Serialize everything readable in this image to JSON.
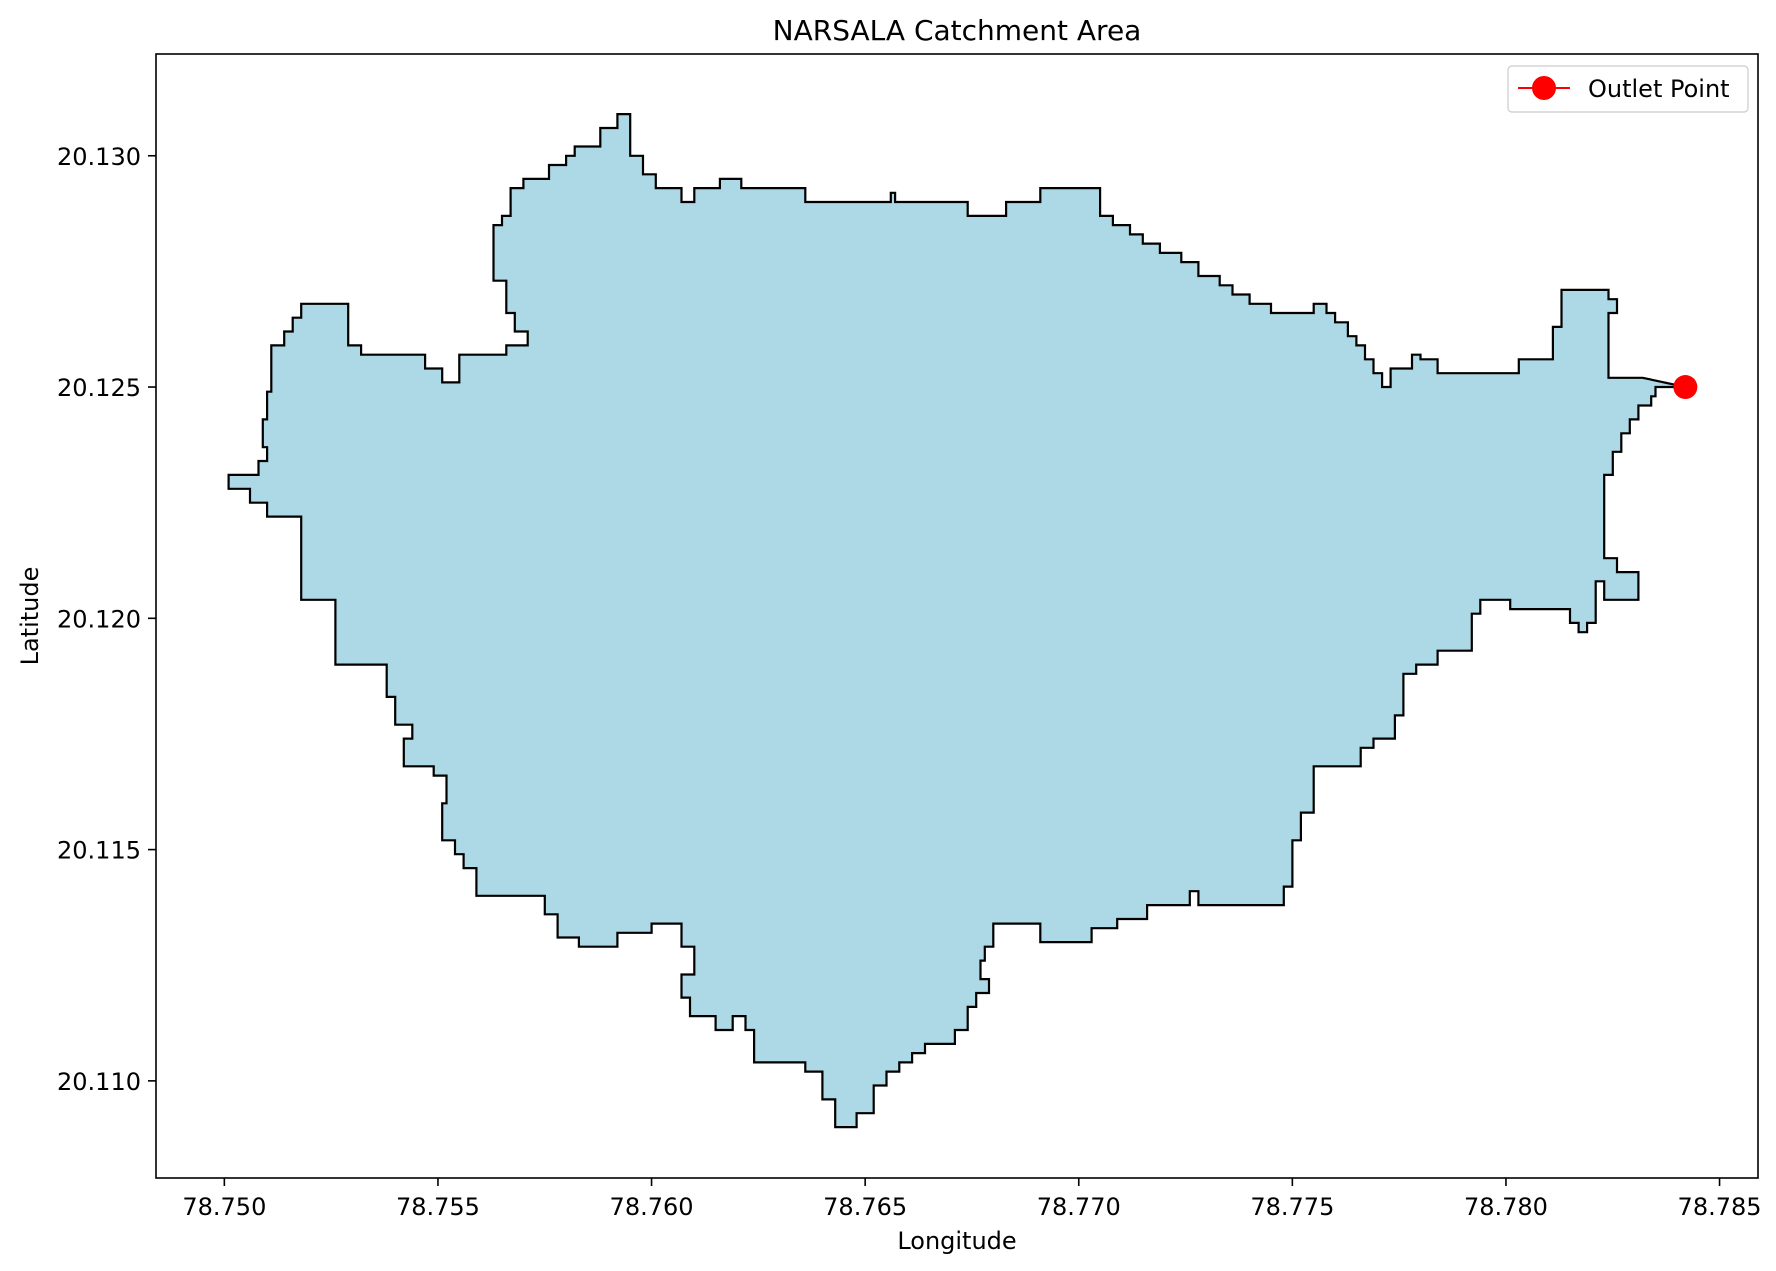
{
  "chart_data": {
    "type": "map",
    "title": "NARSALA Catchment Area",
    "xlabel": "Longitude",
    "ylabel": "Latitude",
    "xlim": [
      78.7484,
      78.7859
    ],
    "ylim": [
      20.1079,
      20.1322
    ],
    "grid": false,
    "legend_position": "top-right",
    "xticks": [
      {
        "value": 78.75,
        "label": "78.750"
      },
      {
        "value": 78.755,
        "label": "78.755"
      },
      {
        "value": 78.76,
        "label": "78.760"
      },
      {
        "value": 78.765,
        "label": "78.765"
      },
      {
        "value": 78.77,
        "label": "78.770"
      },
      {
        "value": 78.775,
        "label": "78.775"
      },
      {
        "value": 78.78,
        "label": "78.780"
      },
      {
        "value": 78.785,
        "label": "78.785"
      }
    ],
    "yticks": [
      {
        "value": 20.11,
        "label": "20.110"
      },
      {
        "value": 20.115,
        "label": "20.115"
      },
      {
        "value": 20.12,
        "label": "20.120"
      },
      {
        "value": 20.125,
        "label": "20.125"
      },
      {
        "value": 20.13,
        "label": "20.130"
      }
    ],
    "catchment": {
      "fill": "#add8e6",
      "stroke": "#000000",
      "boundary": [
        [
          78.7501,
          20.1231
        ],
        [
          78.7501,
          20.1228
        ],
        [
          78.7506,
          20.1228
        ],
        [
          78.7506,
          20.1225
        ],
        [
          78.751,
          20.1225
        ],
        [
          78.751,
          20.1222
        ],
        [
          78.7518,
          20.1222
        ],
        [
          78.7518,
          20.1204
        ],
        [
          78.7526,
          20.1204
        ],
        [
          78.7526,
          20.119
        ],
        [
          78.7538,
          20.119
        ],
        [
          78.7538,
          20.1183
        ],
        [
          78.754,
          20.1183
        ],
        [
          78.754,
          20.1177
        ],
        [
          78.7544,
          20.1177
        ],
        [
          78.7544,
          20.1174
        ],
        [
          78.7542,
          20.1174
        ],
        [
          78.7542,
          20.1168
        ],
        [
          78.7549,
          20.1168
        ],
        [
          78.7549,
          20.1166
        ],
        [
          78.7552,
          20.1166
        ],
        [
          78.7552,
          20.116
        ],
        [
          78.7551,
          20.116
        ],
        [
          78.7551,
          20.1152
        ],
        [
          78.7554,
          20.1152
        ],
        [
          78.7554,
          20.1149
        ],
        [
          78.7556,
          20.1149
        ],
        [
          78.7556,
          20.1146
        ],
        [
          78.7559,
          20.1146
        ],
        [
          78.7559,
          20.114
        ],
        [
          78.7575,
          20.114
        ],
        [
          78.7575,
          20.1136
        ],
        [
          78.7578,
          20.1136
        ],
        [
          78.7578,
          20.1131
        ],
        [
          78.7583,
          20.1131
        ],
        [
          78.7583,
          20.1129
        ],
        [
          78.7592,
          20.1129
        ],
        [
          78.7592,
          20.1132
        ],
        [
          78.76,
          20.1132
        ],
        [
          78.76,
          20.1134
        ],
        [
          78.7607,
          20.1134
        ],
        [
          78.7607,
          20.1129
        ],
        [
          78.761,
          20.1129
        ],
        [
          78.761,
          20.1123
        ],
        [
          78.7607,
          20.1123
        ],
        [
          78.7607,
          20.1118
        ],
        [
          78.7609,
          20.1118
        ],
        [
          78.7609,
          20.1114
        ],
        [
          78.7615,
          20.1114
        ],
        [
          78.7615,
          20.1111
        ],
        [
          78.7619,
          20.1111
        ],
        [
          78.7619,
          20.1114
        ],
        [
          78.7622,
          20.1114
        ],
        [
          78.7622,
          20.1111
        ],
        [
          78.7624,
          20.1111
        ],
        [
          78.7624,
          20.1104
        ],
        [
          78.7636,
          20.1104
        ],
        [
          78.7636,
          20.1102
        ],
        [
          78.764,
          20.1102
        ],
        [
          78.764,
          20.1096
        ],
        [
          78.7643,
          20.1096
        ],
        [
          78.7643,
          20.109
        ],
        [
          78.7648,
          20.109
        ],
        [
          78.7648,
          20.1093
        ],
        [
          78.7652,
          20.1093
        ],
        [
          78.7652,
          20.1099
        ],
        [
          78.7655,
          20.1099
        ],
        [
          78.7655,
          20.1102
        ],
        [
          78.7658,
          20.1102
        ],
        [
          78.7658,
          20.1104
        ],
        [
          78.7661,
          20.1104
        ],
        [
          78.7661,
          20.1106
        ],
        [
          78.7664,
          20.1106
        ],
        [
          78.7664,
          20.1108
        ],
        [
          78.7671,
          20.1108
        ],
        [
          78.7671,
          20.1111
        ],
        [
          78.7674,
          20.1111
        ],
        [
          78.7674,
          20.1116
        ],
        [
          78.7676,
          20.1116
        ],
        [
          78.7676,
          20.1119
        ],
        [
          78.7679,
          20.1119
        ],
        [
          78.7679,
          20.1122
        ],
        [
          78.7677,
          20.1122
        ],
        [
          78.7677,
          20.1126
        ],
        [
          78.7678,
          20.1126
        ],
        [
          78.7678,
          20.1129
        ],
        [
          78.768,
          20.1129
        ],
        [
          78.768,
          20.1134
        ],
        [
          78.7691,
          20.1134
        ],
        [
          78.7691,
          20.113
        ],
        [
          78.7703,
          20.113
        ],
        [
          78.7703,
          20.1133
        ],
        [
          78.7709,
          20.1133
        ],
        [
          78.7709,
          20.1135
        ],
        [
          78.7716,
          20.1135
        ],
        [
          78.7716,
          20.1138
        ],
        [
          78.7726,
          20.1138
        ],
        [
          78.7726,
          20.1141
        ],
        [
          78.7728,
          20.1141
        ],
        [
          78.7728,
          20.1138
        ],
        [
          78.7748,
          20.1138
        ],
        [
          78.7748,
          20.1142
        ],
        [
          78.775,
          20.1142
        ],
        [
          78.775,
          20.1152
        ],
        [
          78.7752,
          20.1152
        ],
        [
          78.7752,
          20.1158
        ],
        [
          78.7755,
          20.1158
        ],
        [
          78.7755,
          20.1168
        ],
        [
          78.7766,
          20.1168
        ],
        [
          78.7766,
          20.1172
        ],
        [
          78.7769,
          20.1172
        ],
        [
          78.7769,
          20.1174
        ],
        [
          78.7774,
          20.1174
        ],
        [
          78.7774,
          20.1179
        ],
        [
          78.7776,
          20.1179
        ],
        [
          78.7776,
          20.1188
        ],
        [
          78.7779,
          20.1188
        ],
        [
          78.7779,
          20.119
        ],
        [
          78.7784,
          20.119
        ],
        [
          78.7784,
          20.1193
        ],
        [
          78.7792,
          20.1193
        ],
        [
          78.7792,
          20.1201
        ],
        [
          78.7794,
          20.1201
        ],
        [
          78.7794,
          20.1204
        ],
        [
          78.7801,
          20.1204
        ],
        [
          78.7801,
          20.1202
        ],
        [
          78.7815,
          20.1202
        ],
        [
          78.7815,
          20.1199
        ],
        [
          78.7817,
          20.1199
        ],
        [
          78.7817,
          20.1197
        ],
        [
          78.7819,
          20.1197
        ],
        [
          78.7819,
          20.1199
        ],
        [
          78.7821,
          20.1199
        ],
        [
          78.7821,
          20.1208
        ],
        [
          78.7823,
          20.1208
        ],
        [
          78.7823,
          20.1204
        ],
        [
          78.7831,
          20.1204
        ],
        [
          78.7831,
          20.121
        ],
        [
          78.7826,
          20.121
        ],
        [
          78.7826,
          20.1213
        ],
        [
          78.7823,
          20.1213
        ],
        [
          78.7823,
          20.1231
        ],
        [
          78.7825,
          20.1231
        ],
        [
          78.7825,
          20.1236
        ],
        [
          78.7827,
          20.1236
        ],
        [
          78.7827,
          20.124
        ],
        [
          78.7829,
          20.124
        ],
        [
          78.7829,
          20.1243
        ],
        [
          78.7831,
          20.1243
        ],
        [
          78.7831,
          20.1246
        ],
        [
          78.7834,
          20.1246
        ],
        [
          78.7834,
          20.1248
        ],
        [
          78.7835,
          20.1248
        ],
        [
          78.7835,
          20.125
        ],
        [
          78.7842,
          20.125
        ],
        [
          78.7832,
          20.1252
        ],
        [
          78.7824,
          20.1252
        ],
        [
          78.7824,
          20.1266
        ],
        [
          78.7826,
          20.1266
        ],
        [
          78.7826,
          20.1269
        ],
        [
          78.7824,
          20.1269
        ],
        [
          78.7824,
          20.1271
        ],
        [
          78.7813,
          20.1271
        ],
        [
          78.7813,
          20.1263
        ],
        [
          78.7811,
          20.1263
        ],
        [
          78.7811,
          20.1256
        ],
        [
          78.7803,
          20.1256
        ],
        [
          78.7803,
          20.1253
        ],
        [
          78.7784,
          20.1253
        ],
        [
          78.7784,
          20.1256
        ],
        [
          78.778,
          20.1256
        ],
        [
          78.778,
          20.1257
        ],
        [
          78.7778,
          20.1257
        ],
        [
          78.7778,
          20.1254
        ],
        [
          78.7773,
          20.1254
        ],
        [
          78.7773,
          20.125
        ],
        [
          78.7771,
          20.125
        ],
        [
          78.7771,
          20.1253
        ],
        [
          78.7769,
          20.1253
        ],
        [
          78.7769,
          20.1256
        ],
        [
          78.7767,
          20.1256
        ],
        [
          78.7767,
          20.1259
        ],
        [
          78.7765,
          20.1259
        ],
        [
          78.7765,
          20.1261
        ],
        [
          78.7763,
          20.1261
        ],
        [
          78.7763,
          20.1264
        ],
        [
          78.776,
          20.1264
        ],
        [
          78.776,
          20.1266
        ],
        [
          78.7758,
          20.1266
        ],
        [
          78.7758,
          20.1268
        ],
        [
          78.7755,
          20.1268
        ],
        [
          78.7755,
          20.1266
        ],
        [
          78.7745,
          20.1266
        ],
        [
          78.7745,
          20.1268
        ],
        [
          78.774,
          20.1268
        ],
        [
          78.774,
          20.127
        ],
        [
          78.7736,
          20.127
        ],
        [
          78.7736,
          20.1272
        ],
        [
          78.7733,
          20.1272
        ],
        [
          78.7733,
          20.1274
        ],
        [
          78.7728,
          20.1274
        ],
        [
          78.7728,
          20.1277
        ],
        [
          78.7724,
          20.1277
        ],
        [
          78.7724,
          20.1279
        ],
        [
          78.7719,
          20.1279
        ],
        [
          78.7719,
          20.1281
        ],
        [
          78.7715,
          20.1281
        ],
        [
          78.7715,
          20.1283
        ],
        [
          78.7712,
          20.1283
        ],
        [
          78.7712,
          20.1285
        ],
        [
          78.7708,
          20.1285
        ],
        [
          78.7708,
          20.1287
        ],
        [
          78.7705,
          20.1287
        ],
        [
          78.7705,
          20.1293
        ],
        [
          78.7691,
          20.1293
        ],
        [
          78.7691,
          20.129
        ],
        [
          78.7683,
          20.129
        ],
        [
          78.7683,
          20.1287
        ],
        [
          78.7674,
          20.1287
        ],
        [
          78.7674,
          20.129
        ],
        [
          78.7657,
          20.129
        ],
        [
          78.7657,
          20.1292
        ],
        [
          78.7656,
          20.1292
        ],
        [
          78.7656,
          20.129
        ],
        [
          78.7636,
          20.129
        ],
        [
          78.7636,
          20.1293
        ],
        [
          78.7621,
          20.1293
        ],
        [
          78.7621,
          20.1295
        ],
        [
          78.7616,
          20.1295
        ],
        [
          78.7616,
          20.1293
        ],
        [
          78.761,
          20.1293
        ],
        [
          78.761,
          20.129
        ],
        [
          78.7607,
          20.129
        ],
        [
          78.7607,
          20.1293
        ],
        [
          78.7601,
          20.1293
        ],
        [
          78.7601,
          20.1296
        ],
        [
          78.7598,
          20.1296
        ],
        [
          78.7598,
          20.13
        ],
        [
          78.7595,
          20.13
        ],
        [
          78.7595,
          20.1309
        ],
        [
          78.7592,
          20.1309
        ],
        [
          78.7592,
          20.1306
        ],
        [
          78.7588,
          20.1306
        ],
        [
          78.7588,
          20.1302
        ],
        [
          78.7582,
          20.1302
        ],
        [
          78.7582,
          20.13
        ],
        [
          78.758,
          20.13
        ],
        [
          78.758,
          20.1298
        ],
        [
          78.7576,
          20.1298
        ],
        [
          78.7576,
          20.1295
        ],
        [
          78.757,
          20.1295
        ],
        [
          78.757,
          20.1293
        ],
        [
          78.7567,
          20.1293
        ],
        [
          78.7567,
          20.1287
        ],
        [
          78.7565,
          20.1287
        ],
        [
          78.7565,
          20.1285
        ],
        [
          78.7563,
          20.1285
        ],
        [
          78.7563,
          20.1273
        ],
        [
          78.7566,
          20.1273
        ],
        [
          78.7566,
          20.1266
        ],
        [
          78.7568,
          20.1266
        ],
        [
          78.7568,
          20.1262
        ],
        [
          78.7571,
          20.1262
        ],
        [
          78.7571,
          20.1259
        ],
        [
          78.7566,
          20.1259
        ],
        [
          78.7566,
          20.1257
        ],
        [
          78.7555,
          20.1257
        ],
        [
          78.7555,
          20.1251
        ],
        [
          78.7551,
          20.1251
        ],
        [
          78.7551,
          20.1254
        ],
        [
          78.7547,
          20.1254
        ],
        [
          78.7547,
          20.1257
        ],
        [
          78.7532,
          20.1257
        ],
        [
          78.7532,
          20.1259
        ],
        [
          78.7529,
          20.1259
        ],
        [
          78.7529,
          20.1268
        ],
        [
          78.7518,
          20.1268
        ],
        [
          78.7518,
          20.1265
        ],
        [
          78.7516,
          20.1265
        ],
        [
          78.7516,
          20.1262
        ],
        [
          78.7514,
          20.1262
        ],
        [
          78.7514,
          20.1259
        ],
        [
          78.7511,
          20.1259
        ],
        [
          78.7511,
          20.1249
        ],
        [
          78.751,
          20.1249
        ],
        [
          78.751,
          20.1243
        ],
        [
          78.7509,
          20.1243
        ],
        [
          78.7509,
          20.1237
        ],
        [
          78.751,
          20.1237
        ],
        [
          78.751,
          20.1234
        ],
        [
          78.7508,
          20.1234
        ],
        [
          78.7508,
          20.1231
        ]
      ]
    },
    "outlet": {
      "lon": 78.7842,
      "lat": 20.125,
      "color": "#ff0000"
    },
    "legend": [
      {
        "label": "Outlet Point",
        "color": "#ff0000",
        "marker": "circle"
      }
    ]
  }
}
